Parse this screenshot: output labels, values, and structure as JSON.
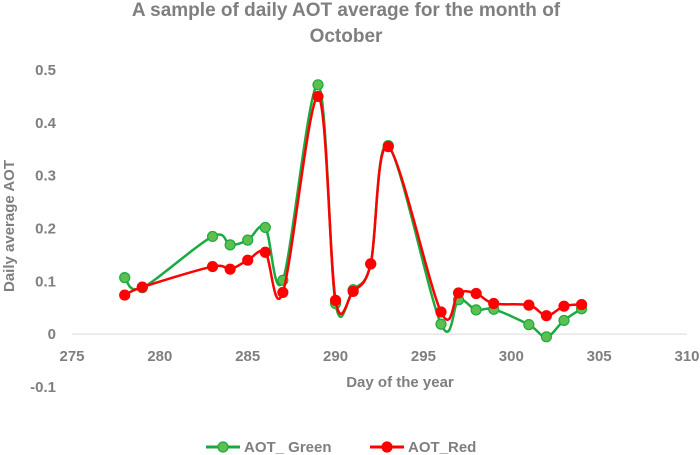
{
  "chart_data": {
    "type": "line",
    "title_lines": [
      "A sample of daily AOT average for the month of",
      "October"
    ],
    "xlabel": "Day of the year",
    "ylabel": "Daily average AOT",
    "xlim": [
      275,
      310
    ],
    "ylim": [
      -0.1,
      0.5
    ],
    "xticks": [
      275,
      280,
      285,
      290,
      295,
      300,
      305,
      310
    ],
    "yticks": [
      -0.1,
      0,
      0.1,
      0.2,
      0.3,
      0.4,
      0.5
    ],
    "ytick_labels": [
      "-0.1",
      "0",
      "0.1",
      "0.2",
      "0.3",
      "0.4",
      "0.5"
    ],
    "grid": false,
    "legend_position": "bottom",
    "smooth": true,
    "series": [
      {
        "name": "AOT_ Green",
        "color": "#1aab40",
        "marker_fill": "#5cbf4f",
        "x": [
          278,
          279,
          283,
          284,
          285,
          286,
          287,
          289,
          290,
          291,
          292,
          293,
          296,
          297,
          298,
          299,
          301,
          302,
          303,
          304
        ],
        "y": [
          0.107,
          0.088,
          0.185,
          0.169,
          0.178,
          0.202,
          0.102,
          0.472,
          0.058,
          0.084,
          0.133,
          0.357,
          0.019,
          0.065,
          0.046,
          0.047,
          0.018,
          -0.005,
          0.026,
          0.048
        ]
      },
      {
        "name": "AOT_Red",
        "color": "#ff0000",
        "marker_fill": "#ff0000",
        "x": [
          278,
          279,
          283,
          284,
          285,
          286,
          287,
          289,
          290,
          291,
          292,
          293,
          296,
          297,
          298,
          299,
          301,
          302,
          303,
          304
        ],
        "y": [
          0.074,
          0.089,
          0.128,
          0.123,
          0.14,
          0.155,
          0.079,
          0.45,
          0.064,
          0.081,
          0.133,
          0.355,
          0.042,
          0.078,
          0.077,
          0.058,
          0.055,
          0.035,
          0.053,
          0.056
        ]
      }
    ]
  }
}
